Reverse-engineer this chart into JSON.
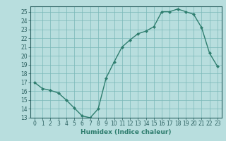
{
  "x": [
    0,
    1,
    2,
    3,
    4,
    5,
    6,
    7,
    8,
    9,
    10,
    11,
    12,
    13,
    14,
    15,
    16,
    17,
    18,
    19,
    20,
    21,
    22,
    23
  ],
  "y": [
    17,
    16.3,
    16.1,
    15.8,
    15.0,
    14.1,
    13.2,
    13.0,
    14.0,
    17.5,
    19.3,
    21.0,
    21.8,
    22.5,
    22.8,
    23.3,
    25.0,
    25.0,
    25.3,
    25.0,
    24.7,
    23.2,
    20.3,
    18.8
  ],
  "line_color": "#2e7d6e",
  "marker": "D",
  "marker_size": 2.0,
  "bg_color": "#b8dede",
  "grid_color": "#7ab8b8",
  "xlabel": "Humidex (Indice chaleur)",
  "xlim": [
    -0.5,
    23.5
  ],
  "ylim": [
    13,
    25.6
  ],
  "yticks": [
    13,
    14,
    15,
    16,
    17,
    18,
    19,
    20,
    21,
    22,
    23,
    24,
    25
  ],
  "xticks": [
    0,
    1,
    2,
    3,
    4,
    5,
    6,
    7,
    8,
    9,
    10,
    11,
    12,
    13,
    14,
    15,
    16,
    17,
    18,
    19,
    20,
    21,
    22,
    23
  ],
  "tick_fontsize": 5.5,
  "xlabel_fontsize": 6.5,
  "line_width": 1.0
}
